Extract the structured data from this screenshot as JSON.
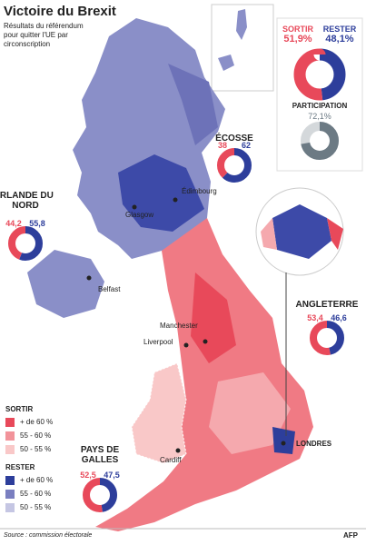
{
  "header": {
    "title": "Victoire du Brexit",
    "subtitle": "Résultats du référendum pour quitter l'UE par circonscription"
  },
  "national": {
    "sortir_label": "SORTIR",
    "rester_label": "RESTER",
    "sortir": {
      "value": 51.9,
      "label": "51,9%"
    },
    "rester": {
      "value": 48.1,
      "label": "48,1%"
    },
    "participation_label": "PARTICIPATION",
    "participation": {
      "value": 72.1,
      "label": "72,1%"
    }
  },
  "regions": [
    {
      "name": "ÉCOSSE",
      "sortir": 38,
      "rester": 62
    },
    {
      "name": "IRLANDE DU NORD",
      "sortir": {
        "value": 44.2,
        "label": "44,2"
      },
      "rester": {
        "value": 55.8,
        "label": "55,8"
      }
    },
    {
      "name": "ANGLETERRE",
      "sortir": {
        "value": 53.4,
        "label": "53,4"
      },
      "rester": {
        "value": 46.6,
        "label": "46,6"
      }
    },
    {
      "name": "PAYS DE GALLES",
      "sortir": {
        "value": 52.5,
        "label": "52,5"
      },
      "rester": {
        "value": 47.5,
        "label": "47,5"
      }
    }
  ],
  "cities": [
    "Édimbourg",
    "Glasgow",
    "Belfast",
    "Manchester",
    "Liverpool",
    "Cardiff",
    "LONDRES"
  ],
  "legend": {
    "groups": [
      {
        "title": "SORTIR",
        "items": [
          "+ de 60 %",
          "55 - 60 %",
          "50 - 55 %"
        ]
      },
      {
        "title": "RESTER",
        "items": [
          "+ de 60 %",
          "55 - 60 %",
          "50 - 55 %"
        ]
      }
    ]
  },
  "source": "Source : commission électorale",
  "credit": "AFP"
}
